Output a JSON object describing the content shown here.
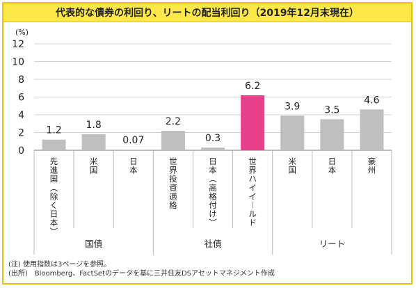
{
  "title": "代表的な債券の利回り、リートの配当利回り（2019年12月末現在）",
  "unit": "(%)",
  "notes": [
    "(注) 使用指数は3ページを参照。",
    "(出所)　Bloomberg、FactSetのデータを基に三井住友DSアセットマネジメント作成"
  ],
  "chart_data": {
    "type": "bar",
    "categories": [
      "先進国（除く日本）",
      "米国",
      "日本",
      "世界投資適格",
      "日本（高格付け）",
      "世界ハイイールド",
      "米国",
      "日本",
      "豪州"
    ],
    "values": [
      1.2,
      1.8,
      0.07,
      2.2,
      0.3,
      6.2,
      3.9,
      3.5,
      4.6
    ],
    "value_labels": [
      "1.2",
      "1.8",
      "0.07",
      "2.2",
      "0.3",
      "6.2",
      "3.9",
      "3.5",
      "4.6"
    ],
    "bar_colors": [
      "#bfbfbf",
      "#bfbfbf",
      "#bfbfbf",
      "#bfbfbf",
      "#bfbfbf",
      "#e8408a",
      "#bfbfbf",
      "#bfbfbf",
      "#bfbfbf"
    ],
    "groups": [
      {
        "label": "国債",
        "start": 0,
        "end": 2
      },
      {
        "label": "社債",
        "start": 3,
        "end": 5
      },
      {
        "label": "リート",
        "start": 6,
        "end": 8
      }
    ],
    "ylim": [
      0,
      12
    ],
    "yticks": [
      0,
      2,
      4,
      6,
      8,
      10,
      12
    ],
    "grid": true
  }
}
